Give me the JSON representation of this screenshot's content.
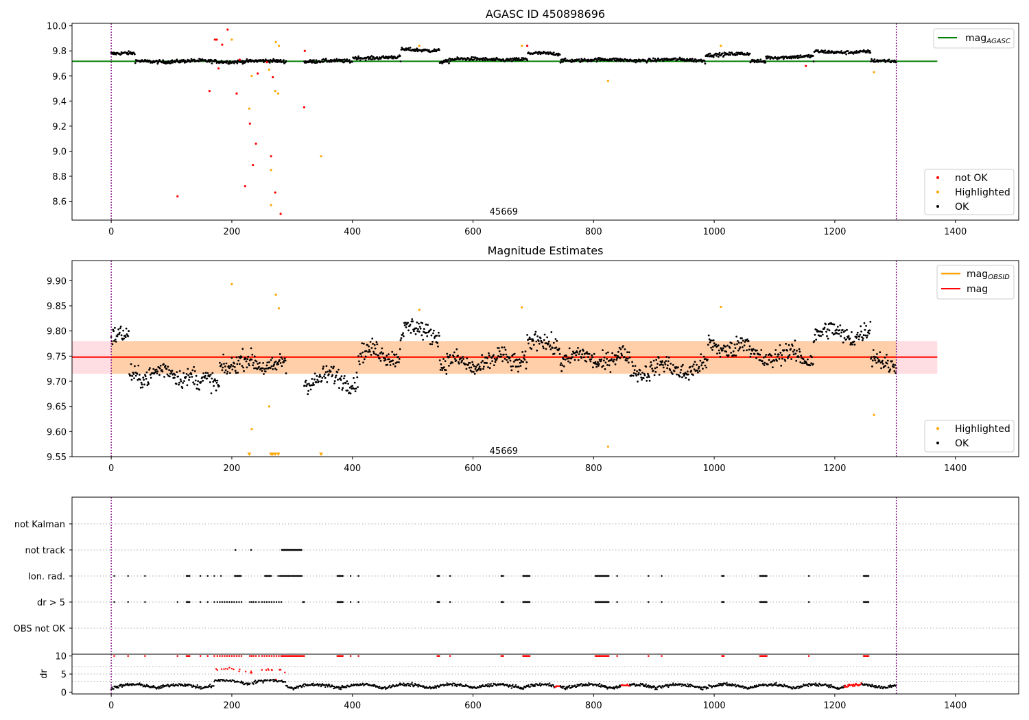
{
  "chart_data": [
    {
      "type": "scatter",
      "title": "AGASC ID 450898696",
      "xlim": [
        -65,
        1505
      ],
      "ylim": [
        8.45,
        10.02
      ],
      "xticks": [
        0,
        200,
        400,
        600,
        800,
        1000,
        1200,
        1400
      ],
      "yticks": [
        8.6,
        8.8,
        9.0,
        9.2,
        9.4,
        9.6,
        9.8,
        10.0
      ],
      "ytick_labels": [
        "8.6",
        "8.8",
        "9.0",
        "9.2",
        "9.4",
        "9.6",
        "9.8",
        "10.0"
      ],
      "vlines": [
        0,
        1302
      ],
      "obsid_label": {
        "text": "45669",
        "x": 651,
        "y": 8.52
      },
      "hline": {
        "name": "mag",
        "sub": "AGASC",
        "y": 9.717,
        "x": [
          -65,
          1370
        ],
        "color": "#008000"
      },
      "series": [
        {
          "name": "not OK",
          "color": "#ff0000",
          "points": [
            [
              110,
              8.64
            ],
            [
              163,
              9.48
            ],
            [
              172,
              9.89
            ],
            [
              175,
              9.89
            ],
            [
              178,
              9.66
            ],
            [
              184,
              9.85
            ],
            [
              193,
              9.97
            ],
            [
              208,
              9.46
            ],
            [
              213,
              9.73
            ],
            [
              222,
              8.72
            ],
            [
              230,
              9.22
            ],
            [
              235,
              8.89
            ],
            [
              240,
              9.06
            ],
            [
              243,
              9.62
            ],
            [
              258,
              9.71
            ],
            [
              265,
              8.96
            ],
            [
              268,
              9.59
            ],
            [
              272,
              8.67
            ],
            [
              281,
              8.5
            ],
            [
              320,
              9.35
            ],
            [
              321,
              9.8
            ],
            [
              690,
              9.84
            ],
            [
              1152,
              9.68
            ]
          ]
        },
        {
          "name": "Highlighted",
          "color": "#ffa500",
          "points": [
            [
              200,
              9.89
            ],
            [
              229,
              9.34
            ],
            [
              233,
              9.6
            ],
            [
              262,
              9.65
            ],
            [
              265,
              8.85
            ],
            [
              265,
              8.57
            ],
            [
              272,
              9.48
            ],
            [
              273,
              9.87
            ],
            [
              277,
              9.46
            ],
            [
              278,
              9.84
            ],
            [
              348,
              8.96
            ],
            [
              511,
              9.84
            ],
            [
              681,
              9.84
            ],
            [
              824,
              9.56
            ],
            [
              1011,
              9.84
            ],
            [
              1265,
              9.63
            ]
          ]
        },
        {
          "name": "OK",
          "color": "#000000",
          "curve": "agasc"
        }
      ],
      "legend_lines": [
        "mag_AGASC"
      ],
      "legend_markers": [
        "not OK",
        "Highlighted",
        "OK"
      ]
    },
    {
      "type": "scatter",
      "title": "Magnitude Estimates",
      "xlim": [
        -65,
        1505
      ],
      "ylim": [
        9.55,
        9.94
      ],
      "xticks": [
        0,
        200,
        400,
        600,
        800,
        1000,
        1200,
        1400
      ],
      "yticks": [
        9.55,
        9.6,
        9.65,
        9.7,
        9.75,
        9.8,
        9.85,
        9.9
      ],
      "ytick_labels": [
        "9.55",
        "9.60",
        "9.65",
        "9.70",
        "9.75",
        "9.80",
        "9.85",
        "9.90"
      ],
      "vlines": [
        0,
        1302
      ],
      "obsid_label": {
        "text": "45669",
        "x": 651,
        "y": 9.562
      },
      "bands": [
        {
          "x": [
            -65,
            1370
          ],
          "y": [
            9.715,
            9.78
          ],
          "color": "#ffb6c1",
          "opacity": 0.45
        },
        {
          "x": [
            0,
            1302
          ],
          "y": [
            9.715,
            9.78
          ],
          "color": "#ffa500",
          "opacity": 0.25
        }
      ],
      "hlines": [
        {
          "name": "mag",
          "sub": "OBSID",
          "y": 9.748,
          "x": [
            0,
            1302
          ],
          "color": "#ffa500"
        },
        {
          "name": "mag",
          "sub": "",
          "y": 9.748,
          "x": [
            -65,
            1370
          ],
          "color": "#ff0000"
        }
      ],
      "series": [
        {
          "name": "Highlighted",
          "color": "#ffa500",
          "points": [
            [
              200,
              9.893
            ],
            [
              233,
              9.605
            ],
            [
              262,
              9.65
            ],
            [
              273,
              9.872
            ],
            [
              278,
              9.845
            ],
            [
              511,
              9.842
            ],
            [
              681,
              9.847
            ],
            [
              824,
              9.57
            ],
            [
              1011,
              9.848
            ],
            [
              1265,
              9.633
            ]
          ],
          "clipped_x": [
            229,
            265,
            268,
            272,
            277,
            348
          ]
        },
        {
          "name": "OK",
          "color": "#000000",
          "curve": "obsid"
        }
      ],
      "legend_lines": [
        "mag_OBSID",
        "mag"
      ],
      "legend_markers": [
        "Highlighted",
        "OK"
      ]
    },
    {
      "type": "scatter",
      "title": "",
      "xlim": [
        -65,
        1505
      ],
      "categories": [
        "not Kalman",
        "not track",
        "Ion. rad.",
        "dr > 5",
        "OBS not OK"
      ],
      "vlines": [
        0,
        1302
      ],
      "flags": {
        "not track": {
          "points": [
            206,
            232
          ],
          "range": [
            283,
            316
          ]
        },
        "Ion. rad.": [
          5,
          28,
          56,
          125,
          126,
          127,
          128,
          129,
          130,
          148,
          160,
          171,
          182,
          205,
          206,
          207,
          208,
          209,
          210,
          211,
          212,
          213,
          214,
          215,
          255,
          256,
          257,
          258,
          259,
          260,
          261,
          262,
          263,
          264,
          265,
          277,
          280,
          282,
          284,
          286,
          288,
          290,
          292,
          294,
          296,
          298,
          300,
          302,
          304,
          306,
          308,
          310,
          312,
          314,
          316,
          375,
          376,
          377,
          378,
          379,
          380,
          381,
          382,
          383,
          384,
          397,
          410,
          541,
          542,
          543,
          544,
          562,
          647,
          648,
          649,
          650,
          683,
          684,
          685,
          686,
          687,
          688,
          689,
          690,
          691,
          692,
          693,
          694,
          803,
          804,
          805,
          806,
          807,
          808,
          809,
          810,
          811,
          812,
          813,
          814,
          815,
          816,
          817,
          818,
          819,
          820,
          821,
          822,
          823,
          824,
          825,
          839,
          891,
          913,
          1013,
          1014,
          1015,
          1016,
          1076,
          1077,
          1078,
          1079,
          1080,
          1081,
          1082,
          1083,
          1084,
          1085,
          1086,
          1087,
          1157,
          1248,
          1249,
          1250,
          1251,
          1252,
          1253,
          1254,
          1255,
          1256
        ],
        "dr > 5": [
          5,
          28,
          56,
          110,
          125,
          126,
          127,
          128,
          129,
          130,
          148,
          160,
          171,
          176,
          180,
          184,
          188,
          192,
          196,
          200,
          204,
          208,
          212,
          216,
          230,
          233,
          236,
          240,
          245,
          250,
          254,
          258,
          262,
          266,
          270,
          274,
          278,
          282,
          318,
          319,
          320,
          375,
          376,
          377,
          378,
          379,
          380,
          381,
          382,
          383,
          384,
          397,
          410,
          541,
          542,
          543,
          544,
          562,
          647,
          648,
          649,
          650,
          683,
          684,
          685,
          686,
          687,
          688,
          689,
          690,
          691,
          692,
          693,
          694,
          803,
          804,
          805,
          806,
          807,
          808,
          809,
          810,
          811,
          812,
          813,
          814,
          815,
          816,
          817,
          818,
          819,
          820,
          821,
          822,
          823,
          824,
          825,
          839,
          891,
          913,
          1013,
          1014,
          1015,
          1016,
          1076,
          1077,
          1078,
          1079,
          1080,
          1081,
          1082,
          1083,
          1084,
          1085,
          1086,
          1087,
          1157,
          1248,
          1249,
          1250,
          1251,
          1252,
          1253,
          1254,
          1255,
          1256
        ]
      }
    },
    {
      "type": "scatter",
      "title": "",
      "ylabel": "dr",
      "xlim": [
        -65,
        1505
      ],
      "ylim": [
        -0.5,
        10.5
      ],
      "xticks": [
        0,
        200,
        400,
        600,
        800,
        1000,
        1200,
        1400
      ],
      "xtick_labels": [
        "0",
        "200",
        "400",
        "600",
        "800",
        "1000",
        "1200",
        "1400"
      ],
      "yticks": [
        0,
        5,
        10
      ],
      "ytick_labels": [
        "0",
        "5",
        "10"
      ],
      "vlines": [
        0,
        1302
      ],
      "series": [
        {
          "name": "dr",
          "color": "#000000",
          "curve": "dr"
        },
        {
          "name": "dr flagged",
          "color": "#ff0000"
        }
      ]
    }
  ]
}
